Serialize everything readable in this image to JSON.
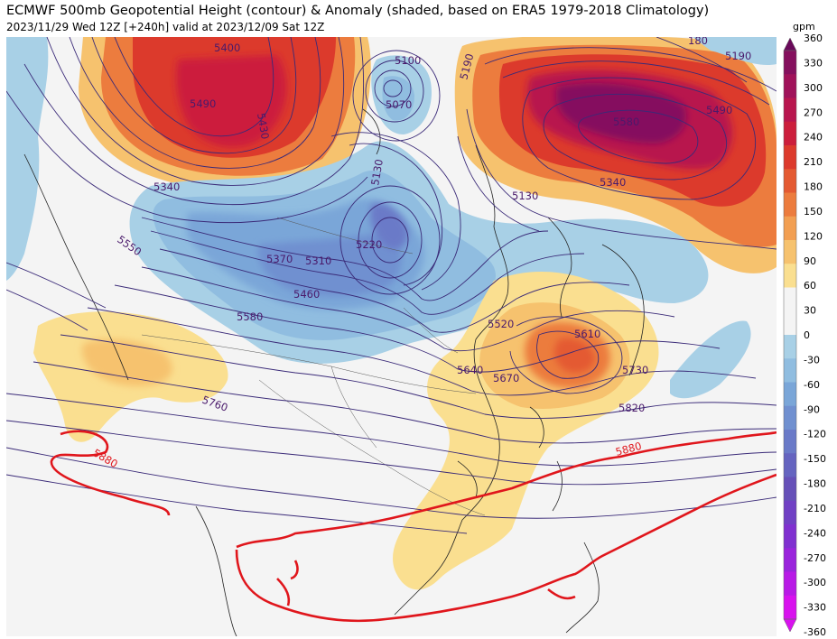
{
  "header": {
    "title": "ECMWF 500mb Geopotential Height (contour) & Anomaly (shaded, based on ERA5 1979-2018 Climatology)",
    "subtitle": "2023/11/29 Wed 12Z [+240h] valid at 2023/12/09 Sat 12Z"
  },
  "colorbar": {
    "unit": "gpm",
    "ticks": [
      "360",
      "330",
      "300",
      "270",
      "240",
      "210",
      "180",
      "150",
      "120",
      "90",
      "60",
      "30",
      "0",
      "-30",
      "-60",
      "-90",
      "-120",
      "-150",
      "-180",
      "-210",
      "-240",
      "-270",
      "-300",
      "-330",
      "-360"
    ],
    "colors": [
      "#6a0a5a",
      "#85105e",
      "#a0125a",
      "#b8154e",
      "#cc1e3c",
      "#dc3a2c",
      "#e45a32",
      "#ec7c3e",
      "#f29f52",
      "#f6c26e",
      "#fadf90",
      "#f4f4f4",
      "#f4f4f4",
      "#a8d0e6",
      "#90bde0",
      "#7aa6d8",
      "#7090d0",
      "#6a7ac8",
      "#6564c0",
      "#6650b8",
      "#7040c4",
      "#8030d0",
      "#9a24dc",
      "#b81ae6",
      "#d812ee"
    ]
  },
  "contour_labels": [
    {
      "text": "5400"
    },
    {
      "text": "5490"
    },
    {
      "text": "5430"
    },
    {
      "text": "5100"
    },
    {
      "text": "5070"
    },
    {
      "text": "5190"
    },
    {
      "text": "5190"
    },
    {
      "text": "5580"
    },
    {
      "text": "5490"
    },
    {
      "text": "5340"
    },
    {
      "text": "5340"
    },
    {
      "text": "5130"
    },
    {
      "text": "5130"
    },
    {
      "text": "5220"
    },
    {
      "text": "5310"
    },
    {
      "text": "5370"
    },
    {
      "text": "5460"
    },
    {
      "text": "5550"
    },
    {
      "text": "5580"
    },
    {
      "text": "5520"
    },
    {
      "text": "5610"
    },
    {
      "text": "5640"
    },
    {
      "text": "5670"
    },
    {
      "text": "5730"
    },
    {
      "text": "5760"
    },
    {
      "text": "5820"
    },
    {
      "text": "5880"
    },
    {
      "text": "5880"
    },
    {
      "text": "180"
    }
  ]
}
